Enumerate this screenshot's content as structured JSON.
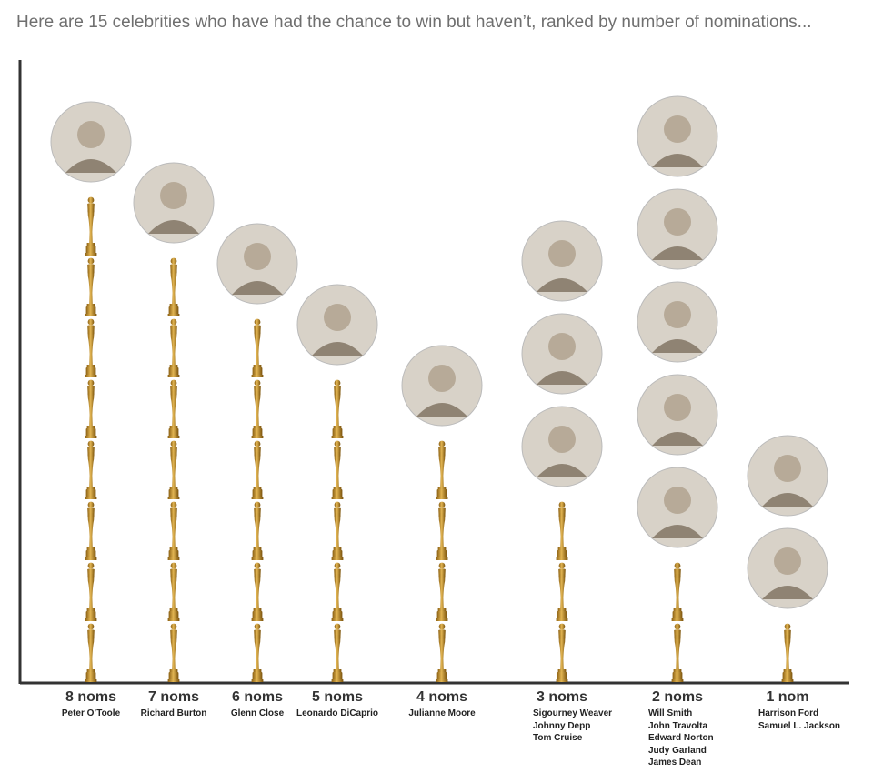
{
  "headline": "Here are 15 celebrities who have had the chance to win but haven’t, ranked by number of nominations...",
  "colors": {
    "statuette_gold": "#c9952d",
    "statuette_dark": "#8a5f12",
    "axis": "#333333",
    "photo_placeholder": "#d8d2c8"
  },
  "icon": "oscar-statuette-icon",
  "chart_data": {
    "type": "bar",
    "title": "",
    "xlabel": "",
    "ylabel": "",
    "ylim": [
      0,
      8
    ],
    "categories": [
      "8 noms",
      "7 noms",
      "6 noms",
      "5 noms",
      "4 noms",
      "3 noms",
      "2 noms",
      "1 nom"
    ],
    "values": [
      8,
      7,
      6,
      5,
      4,
      3,
      2,
      1
    ],
    "names": [
      [
        "Peter O’Toole"
      ],
      [
        "Richard Burton"
      ],
      [
        "Glenn Close"
      ],
      [
        "Leonardo DiCaprio"
      ],
      [
        "Julianne Moore"
      ],
      [
        "Sigourney Weaver",
        "Johnny Depp",
        "Tom Cruise"
      ],
      [
        "Will Smith",
        "John Travolta",
        "Edward Norton",
        "Judy Garland",
        "James Dean"
      ],
      [
        "Harrison Ford",
        "Samuel L. Jackson"
      ]
    ]
  }
}
